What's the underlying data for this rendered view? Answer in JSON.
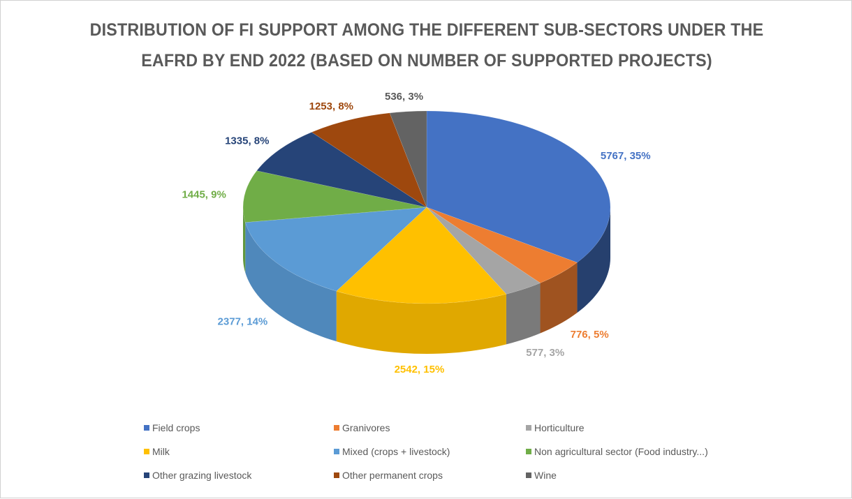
{
  "chart_data": {
    "type": "pie",
    "title_line1": "DISTRIBUTION OF FI SUPPORT AMONG THE DIFFERENT SUB-SECTORS UNDER THE",
    "title_line2": "EAFRD BY END 2022 (BASED ON NUMBER OF SUPPORTED PROJECTS)",
    "categories": [
      "Field crops",
      "Granivores",
      "Horticulture",
      "Wine",
      "Milk",
      "Mixed (crops + livestock)",
      "Non agricultural sector (Food industry...)",
      "Other grazing livestock",
      "Other permanent crops"
    ],
    "values": [
      5767,
      776,
      577,
      536,
      2542,
      2377,
      1445,
      1335,
      1253
    ],
    "data_labels": [
      "5767, 35%",
      "776, 5%",
      "577, 3%",
      "536, 3%",
      "2542, 15%",
      "2377, 14%",
      "1445, 9%",
      "1335, 8%",
      "1253, 8%"
    ],
    "colors": [
      "#4472c4",
      "#ed7d31",
      "#a5a5a5",
      "#636363",
      "#ffc000",
      "#5b9bd5",
      "#70ad47",
      "#264478",
      "#9e480e"
    ],
    "label_colors": [
      "#4472c4",
      "#ed7d31",
      "#a5a5a5",
      "#595959",
      "#ffc000",
      "#5b9bd5",
      "#70ad47",
      "#264478",
      "#9e480e"
    ],
    "slice_order": [
      0,
      1,
      2,
      4,
      5,
      6,
      7,
      8,
      3
    ],
    "legend": {
      "placement": "bottom",
      "order": [
        "Field crops",
        "Granivores",
        "Horticulture",
        "Milk",
        "Mixed (crops + livestock)",
        "Non agricultural sector (Food industry...)",
        "Other grazing livestock",
        "Other permanent crops",
        "Wine"
      ]
    },
    "style": "3d-pie"
  }
}
